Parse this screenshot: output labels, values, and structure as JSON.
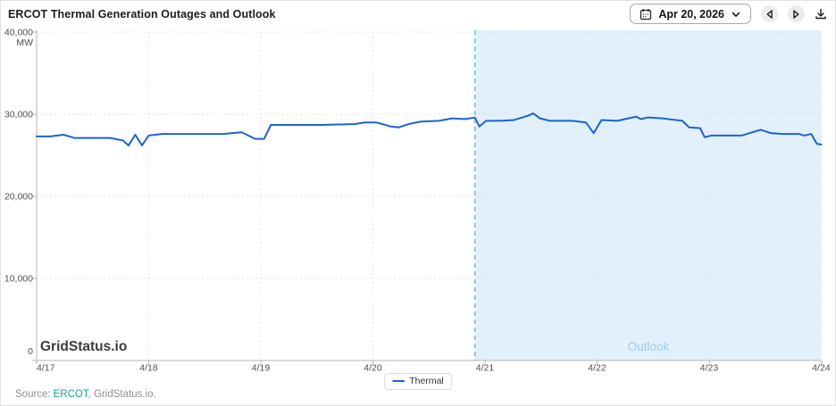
{
  "title": "ERCOT Thermal Generation Outages and Outlook",
  "controls": {
    "date_value": "Apr 20, 2026"
  },
  "chart": {
    "watermark": "GridStatus.io",
    "outlook_label": "Outlook",
    "legend": {
      "thermal_label": "Thermal"
    }
  },
  "footer": {
    "source_prefix": "Source:",
    "source_link": "ERCOT",
    "source_suffix": ", GridStatus.io."
  },
  "colors": {
    "line": "#1f62d0",
    "outlook_fill": "#e1f0fb",
    "now_line": "#85c6ec",
    "outlook_text": "#9bcdef",
    "source_link_teal": "#17a38b",
    "gridline": "#e2e2e2",
    "axis": "#b5b5b5",
    "tick_text": "#4f4f4f"
  },
  "chart_data": {
    "type": "line",
    "title": "ERCOT Thermal Generation Outages and Outlook",
    "ylabel": "MW",
    "ylim": [
      0,
      40000
    ],
    "y_ticks": [
      0,
      10000,
      20000,
      30000,
      40000
    ],
    "y_tick_labels": [
      "0",
      "10,000",
      "20,000",
      "30,000",
      "40,000"
    ],
    "x_tick_labels": [
      "4/17",
      "4/18",
      "4/19",
      "4/20",
      "4/21",
      "4/22",
      "4/23",
      "4/24"
    ],
    "x_range_days": [
      0,
      7
    ],
    "grid": true,
    "legend_position": "bottom-center",
    "now_marker_days": 3.91,
    "outlook_region_days": [
      3.91,
      7
    ],
    "series": [
      {
        "name": "Thermal",
        "x_days": [
          0,
          0.12,
          0.24,
          0.34,
          0.48,
          0.66,
          0.77,
          0.82,
          0.88,
          0.94,
          1.0,
          1.12,
          1.43,
          1.67,
          1.83,
          1.95,
          2.03,
          2.09,
          2.31,
          2.55,
          2.84,
          2.93,
          3.03,
          3.16,
          3.23,
          3.32,
          3.43,
          3.59,
          3.71,
          3.82,
          3.91,
          3.95,
          4.01,
          4.14,
          4.26,
          4.38,
          4.43,
          4.49,
          4.58,
          4.78,
          4.9,
          4.97,
          5.04,
          5.18,
          5.28,
          5.35,
          5.39,
          5.45,
          5.58,
          5.7,
          5.76,
          5.82,
          5.92,
          5.96,
          6.02,
          6.18,
          6.29,
          6.41,
          6.46,
          6.55,
          6.65,
          6.8,
          6.85,
          6.91,
          6.96,
          7.0
        ],
        "values_mw": [
          27300,
          27300,
          27500,
          27100,
          27100,
          27100,
          26800,
          26200,
          27500,
          26200,
          27400,
          27600,
          27600,
          27600,
          27800,
          27000,
          27000,
          28700,
          28700,
          28700,
          28800,
          29000,
          29000,
          28500,
          28400,
          28800,
          29100,
          29200,
          29500,
          29400,
          29600,
          28500,
          29200,
          29200,
          29300,
          29800,
          30100,
          29500,
          29200,
          29200,
          29000,
          27700,
          29300,
          29200,
          29500,
          29700,
          29400,
          29600,
          29500,
          29300,
          29200,
          28400,
          28300,
          27200,
          27400,
          27400,
          27400,
          27900,
          28100,
          27700,
          27600,
          27600,
          27400,
          27600,
          26400,
          26300
        ]
      }
    ]
  }
}
